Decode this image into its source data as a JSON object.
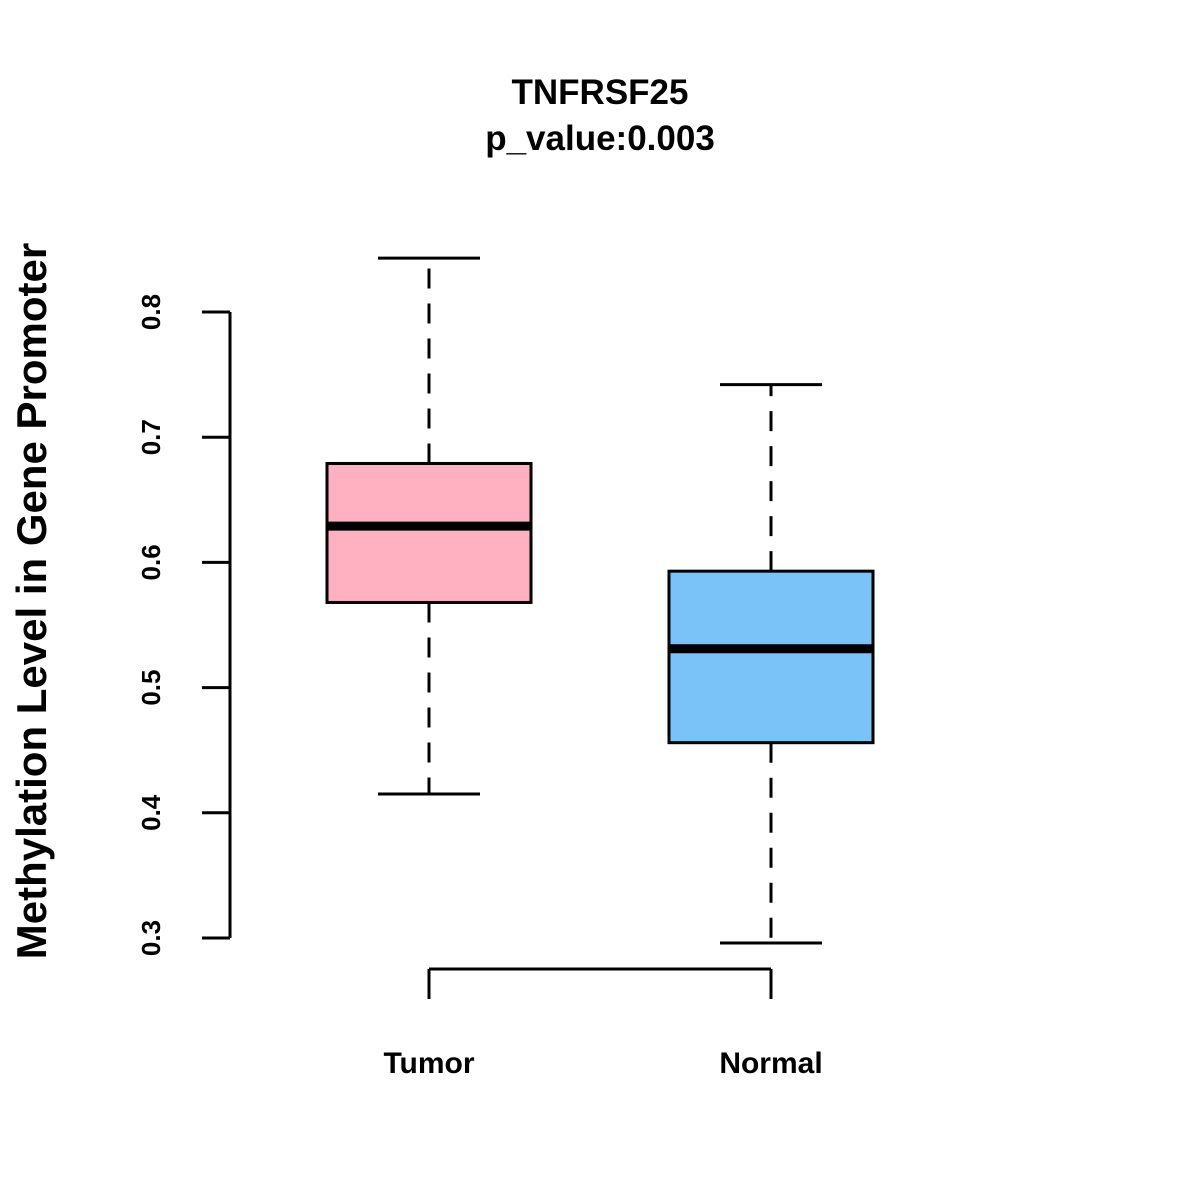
{
  "chart_data": {
    "type": "boxplot",
    "title": "TNFRSF25",
    "subtitle": "p_value:0.003",
    "ylabel": "Methylation Level in Gene Promoter",
    "xlabel": "",
    "ylim": [
      0.3,
      0.8
    ],
    "yticks": [
      "0.3",
      "0.4",
      "0.5",
      "0.6",
      "0.7",
      "0.8"
    ],
    "grid": false,
    "categories": [
      "Tumor",
      "Normal"
    ],
    "boxes": [
      {
        "name": "Tumor",
        "min": 0.415,
        "q1": 0.568,
        "median": 0.629,
        "q3": 0.679,
        "max": 0.843,
        "color": "#FFB0C1"
      },
      {
        "name": "Normal",
        "min": 0.296,
        "q1": 0.456,
        "median": 0.531,
        "q3": 0.593,
        "max": 0.742,
        "color": "#7AC3F9"
      }
    ]
  }
}
